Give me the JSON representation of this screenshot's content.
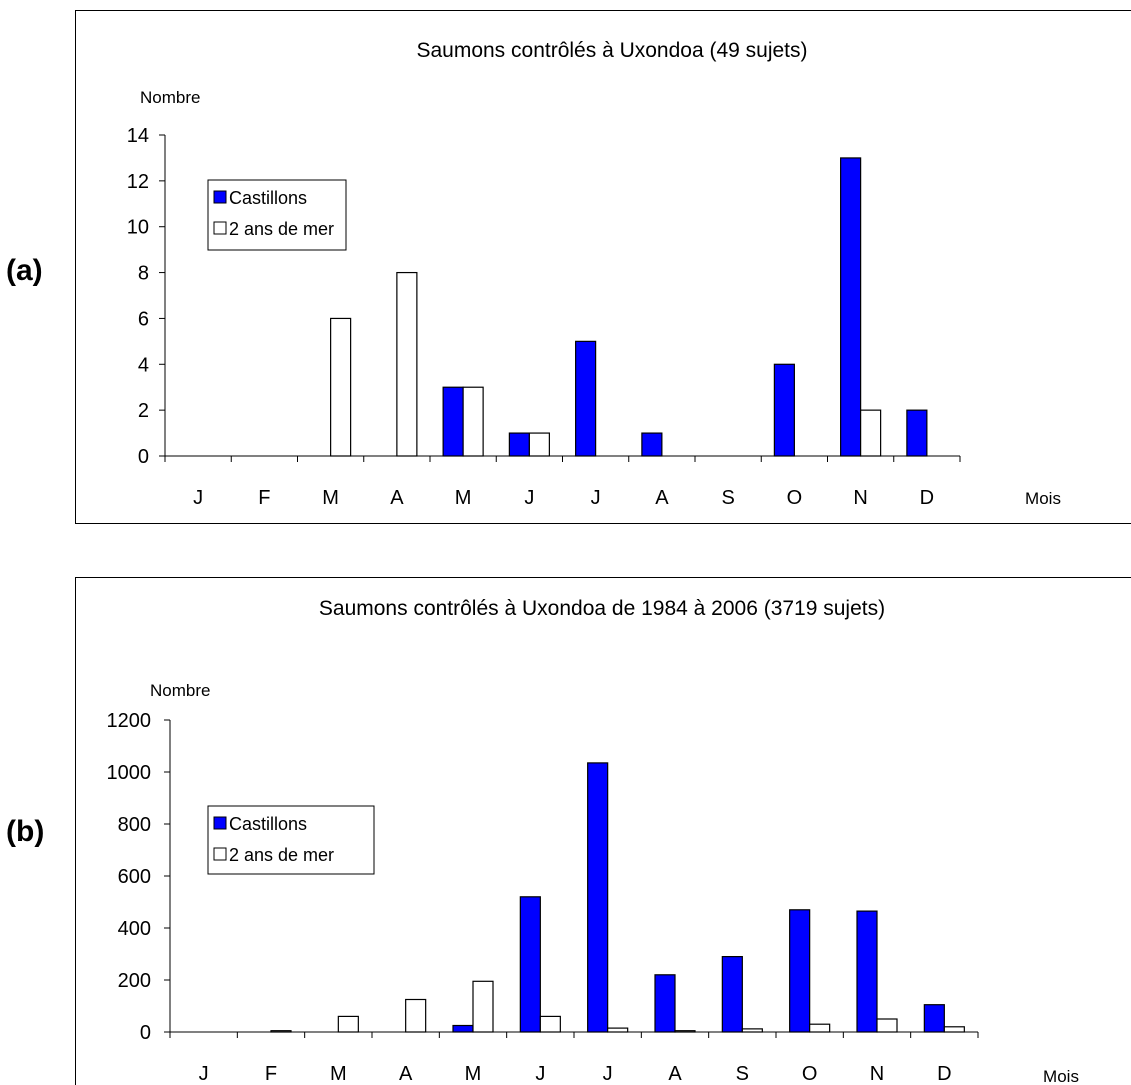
{
  "colors": {
    "castillons": "#0000ff",
    "deux_ans": "#ffffff",
    "axis": "#000000"
  },
  "panels": {
    "a": {
      "label": "(a)"
    },
    "b": {
      "label": "(b)"
    }
  },
  "chart_data": [
    {
      "type": "bar",
      "title": "Saumons contrôlés à Uxondoa (49 sujets)",
      "ylabel": "Nombre",
      "xlabel": "Mois",
      "categories": [
        "J",
        "F",
        "M",
        "A",
        "M",
        "J",
        "J",
        "A",
        "S",
        "O",
        "N",
        "D"
      ],
      "ylim": [
        0,
        14
      ],
      "yticks": [
        0,
        2,
        4,
        6,
        8,
        10,
        12,
        14
      ],
      "legend": "top-left",
      "grid": false,
      "series": [
        {
          "name": "Castillons",
          "values": [
            0,
            0,
            0,
            0,
            3,
            1,
            5,
            1,
            0,
            4,
            13,
            2
          ]
        },
        {
          "name": "2 ans de mer",
          "values": [
            0,
            0,
            6,
            8,
            3,
            1,
            0,
            0,
            0,
            0,
            2,
            0
          ]
        }
      ]
    },
    {
      "type": "bar",
      "title": "Saumons contrôlés à Uxondoa de 1984 à 2006 (3719 sujets)",
      "ylabel": "Nombre",
      "xlabel": "Mois",
      "categories": [
        "J",
        "F",
        "M",
        "A",
        "M",
        "J",
        "J",
        "A",
        "S",
        "O",
        "N",
        "D"
      ],
      "ylim": [
        0,
        1200
      ],
      "yticks": [
        0,
        200,
        400,
        600,
        800,
        1000,
        1200
      ],
      "legend": "middle-left",
      "grid": false,
      "series": [
        {
          "name": "Castillons",
          "values": [
            0,
            0,
            0,
            0,
            25,
            520,
            1035,
            220,
            290,
            470,
            465,
            105
          ]
        },
        {
          "name": "2 ans de mer",
          "values": [
            0,
            5,
            60,
            125,
            195,
            60,
            15,
            5,
            12,
            30,
            50,
            20
          ]
        }
      ]
    }
  ]
}
